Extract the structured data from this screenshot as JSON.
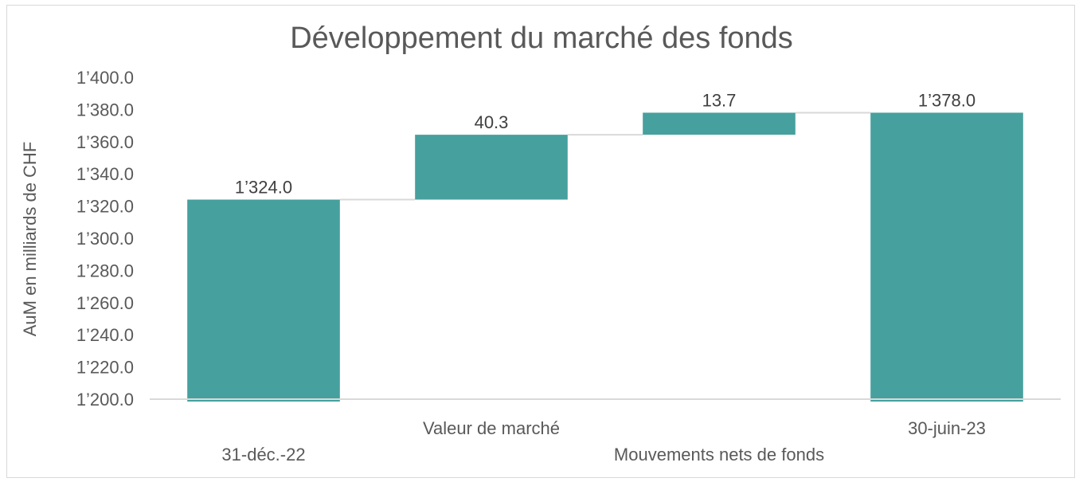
{
  "chart_data": {
    "type": "bar",
    "subtype": "waterfall",
    "title": "Développement du marché des fonds",
    "xlabel": "",
    "ylabel": "AuM en milliards de CHF",
    "ylim": [
      1200,
      1400
    ],
    "ytick_step": 20,
    "yticks": [
      "1’200.0",
      "1’220.0",
      "1’240.0",
      "1’260.0",
      "1’280.0",
      "1’300.0",
      "1’320.0",
      "1’340.0",
      "1’360.0",
      "1’380.0",
      "1’400.0"
    ],
    "categories": [
      "31-déc.-22",
      "Valeur de marché",
      "Mouvements nets de fonds",
      "30-juin-23"
    ],
    "values": [
      1324.0,
      40.3,
      13.7,
      1378.0
    ],
    "bar_kinds": [
      "total",
      "delta",
      "delta",
      "total"
    ],
    "data_labels": [
      "1’324.0",
      "40.3",
      "13.7",
      "1’378.0"
    ],
    "grid": false,
    "legend": "none",
    "bar_color": "#46A09E",
    "connector_color": "#d9d9d9"
  }
}
